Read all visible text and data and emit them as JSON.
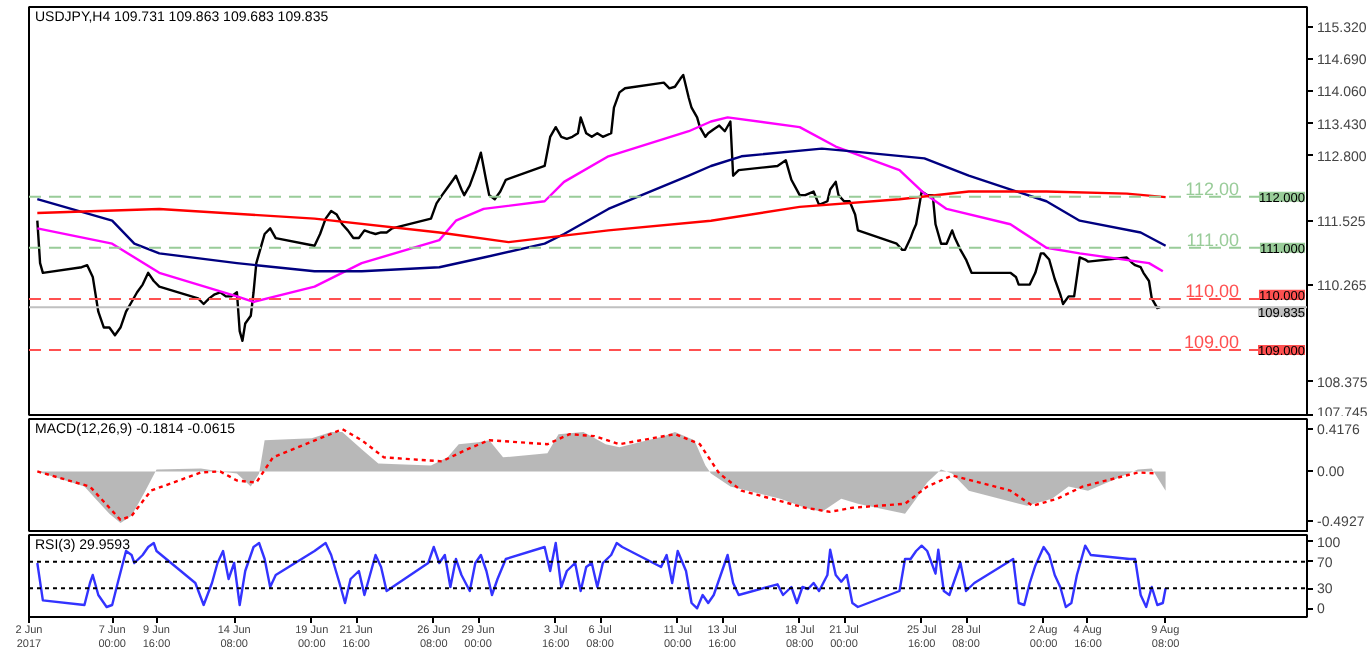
{
  "chart_data": [
    {
      "type": "line",
      "title": "USDJPY,H4  109.731 109.863 109.683 109.835",
      "xlim": [
        "2017-06-02T00:00",
        "2017-08-17T20:00"
      ],
      "ylim": [
        107.69,
        115.71
      ],
      "tick_labels": "y",
      "yticks": [
        {
          "value": 115.32,
          "label": "115.320"
        },
        {
          "value": 114.69,
          "label": "114.690"
        },
        {
          "value": 114.06,
          "label": "114.060"
        },
        {
          "value": 113.43,
          "label": "113.430"
        },
        {
          "value": 112.8,
          "label": "112.800"
        },
        {
          "value": 111.525,
          "label": "111.525"
        },
        {
          "value": 110.265,
          "label": "110.265"
        },
        {
          "value": 108.375,
          "label": "108.375"
        },
        {
          "value": 107.745,
          "label": "107.745"
        }
      ],
      "series": [
        {
          "color": "#000000",
          "x": [
            "2017-06-02T12:00",
            "2017-06-02T16:00",
            "2017-06-02T20:00",
            "2017-06-05T04:00",
            "2017-06-05T12:00",
            "2017-06-05T20:00",
            "2017-06-06T04:00",
            "2017-06-06T12:00",
            "2017-06-06T20:00",
            "2017-06-07T04:00",
            "2017-06-07T12:00",
            "2017-06-07T20:00",
            "2017-06-08T04:00",
            "2017-06-08T12:00",
            "2017-06-08T20:00",
            "2017-06-09T04:00",
            "2017-06-09T12:00",
            "2017-06-09T20:00",
            "2017-06-12T04:00",
            "2017-06-12T12:00",
            "2017-06-12T20:00",
            "2017-06-13T04:00",
            "2017-06-13T12:00",
            "2017-06-13T20:00",
            "2017-06-14T04:00",
            "2017-06-14T12:00",
            "2017-06-14T16:00",
            "2017-06-14T20:00",
            "2017-06-15T00:00",
            "2017-06-15T08:00",
            "2017-06-15T12:00",
            "2017-06-15T16:00",
            "2017-06-16T00:00",
            "2017-06-16T04:00",
            "2017-06-16T12:00",
            "2017-06-16T20:00",
            "2017-06-19T04:00",
            "2017-06-19T12:00",
            "2017-06-19T20:00",
            "2017-06-20T04:00",
            "2017-06-20T12:00",
            "2017-06-20T20:00",
            "2017-06-21T04:00",
            "2017-06-21T12:00",
            "2017-06-21T20:00",
            "2017-06-22T04:00",
            "2017-06-22T12:00",
            "2017-06-22T20:00",
            "2017-06-23T04:00",
            "2017-06-23T12:00",
            "2017-06-23T20:00",
            "2017-06-26T04:00",
            "2017-06-26T12:00",
            "2017-06-26T20:00",
            "2017-06-27T04:00",
            "2017-06-27T12:00",
            "2017-06-27T16:00",
            "2017-06-28T00:00",
            "2017-06-28T04:00",
            "2017-06-28T12:00",
            "2017-06-28T20:00",
            "2017-06-29T04:00",
            "2017-06-29T12:00",
            "2017-06-29T16:00",
            "2017-06-30T00:00",
            "2017-06-30T08:00",
            "2017-06-30T16:00",
            "2017-07-03T00:00",
            "2017-07-03T08:00",
            "2017-07-03T16:00",
            "2017-07-04T00:00",
            "2017-07-04T08:00",
            "2017-07-04T16:00",
            "2017-07-05T00:00",
            "2017-07-05T04:00",
            "2017-07-05T12:00",
            "2017-07-05T20:00",
            "2017-07-06T04:00",
            "2017-07-06T12:00",
            "2017-07-07T00:00",
            "2017-07-07T04:00",
            "2017-07-07T12:00",
            "2017-07-07T20:00",
            "2017-07-10T04:00",
            "2017-07-10T12:00",
            "2017-07-10T20:00",
            "2017-07-11T04:00",
            "2017-07-11T08:00",
            "2017-07-11T16:00",
            "2017-07-11T20:00",
            "2017-07-12T04:00",
            "2017-07-12T08:00",
            "2017-07-12T16:00",
            "2017-07-12T20:00",
            "2017-07-13T04:00",
            "2017-07-13T12:00",
            "2017-07-13T20:00",
            "2017-07-14T04:00",
            "2017-07-14T08:00",
            "2017-07-14T16:00",
            "2017-07-17T00:00",
            "2017-07-17T12:00",
            "2017-07-17T20:00",
            "2017-07-18T08:00",
            "2017-07-18T16:00",
            "2017-07-19T04:00",
            "2017-07-19T12:00",
            "2017-07-20T00:00",
            "2017-07-20T04:00",
            "2017-07-20T12:00",
            "2017-07-20T16:00",
            "2017-07-21T00:00",
            "2017-07-21T08:00",
            "2017-07-21T16:00",
            "2017-07-21T20:00",
            "2017-07-24T04:00",
            "2017-07-24T12:00",
            "2017-07-24T16:00",
            "2017-07-25T00:00",
            "2017-07-25T04:00",
            "2017-07-25T08:00",
            "2017-07-25T16:00",
            "2017-07-26T00:00",
            "2017-07-26T08:00",
            "2017-07-26T12:00",
            "2017-07-26T20:00",
            "2017-07-27T04:00",
            "2017-07-27T12:00",
            "2017-07-27T16:00",
            "2017-07-28T00:00",
            "2017-07-28T08:00",
            "2017-07-28T16:00",
            "2017-07-31T00:00",
            "2017-07-31T08:00",
            "2017-07-31T12:00",
            "2017-07-31T20:00",
            "2017-08-01T04:00",
            "2017-08-01T12:00",
            "2017-08-01T20:00",
            "2017-08-02T00:00",
            "2017-08-02T08:00",
            "2017-08-02T16:00",
            "2017-08-03T00:00",
            "2017-08-03T04:00",
            "2017-08-03T12:00",
            "2017-08-03T20:00",
            "2017-08-04T04:00",
            "2017-08-04T12:00",
            "2017-08-04T16:00",
            "2017-08-07T00:00",
            "2017-08-07T08:00",
            "2017-08-07T12:00",
            "2017-08-07T20:00",
            "2017-08-08T00:00",
            "2017-08-08T08:00",
            "2017-08-08T12:00",
            "2017-08-08T20:00",
            "2017-08-09T00:00"
          ],
          "values": [
            111.53,
            110.7,
            110.51,
            110.62,
            110.66,
            110.43,
            109.75,
            109.44,
            109.44,
            109.29,
            109.44,
            109.75,
            109.94,
            110.13,
            110.28,
            110.51,
            110.35,
            110.24,
            110.01,
            109.9,
            110.01,
            110.09,
            110.13,
            110.05,
            110.05,
            110.13,
            109.37,
            109.18,
            109.52,
            109.67,
            110.13,
            110.7,
            111.08,
            111.27,
            111.38,
            111.19,
            111.04,
            111.27,
            111.57,
            111.72,
            111.65,
            111.46,
            111.34,
            111.19,
            111.19,
            111.34,
            111.3,
            111.27,
            111.3,
            111.3,
            111.38,
            111.57,
            111.87,
            112.03,
            112.18,
            112.33,
            112.41,
            112.14,
            112.03,
            112.22,
            112.52,
            112.86,
            112.29,
            112.03,
            111.95,
            112.1,
            112.33,
            112.6,
            113.17,
            113.36,
            113.17,
            113.13,
            113.17,
            113.24,
            113.55,
            113.24,
            113.17,
            113.24,
            113.17,
            113.24,
            113.74,
            114.04,
            114.12,
            114.23,
            114.12,
            114.15,
            114.31,
            114.38,
            113.93,
            113.74,
            113.55,
            113.36,
            113.17,
            113.24,
            113.32,
            113.39,
            113.28,
            113.47,
            112.41,
            112.52,
            112.6,
            112.71,
            112.33,
            112.03,
            112.03,
            112.1,
            111.84,
            111.91,
            112.14,
            112.29,
            112.03,
            111.91,
            111.91,
            111.65,
            111.34,
            111.08,
            110.96,
            110.96,
            111.19,
            111.34,
            111.46,
            112.1,
            112.03,
            112.03,
            111.46,
            111.08,
            111.08,
            111.34,
            111.19,
            110.96,
            110.77,
            110.51,
            110.51,
            110.43,
            110.28,
            110.28,
            110.28,
            110.51,
            110.89,
            110.89,
            110.77,
            110.39,
            110.09,
            109.9,
            110.05,
            110.05,
            110.81,
            110.77,
            110.73,
            110.81,
            110.7,
            110.66,
            110.62,
            110.51,
            110.35,
            110.01,
            109.82,
            109.84
          ]
        },
        {
          "color": "#ff00ff",
          "x": [
            "2017-06-02T12:00",
            "2017-06-07T00:00",
            "2017-06-09T20:00",
            "2017-06-14T12:00",
            "2017-06-15T12:00",
            "2017-06-19T04:00",
            "2017-06-22T00:00",
            "2017-06-26T16:00",
            "2017-06-27T16:00",
            "2017-06-29T08:00",
            "2017-07-03T00:00",
            "2017-07-04T04:00",
            "2017-07-06T20:00",
            "2017-07-11T16:00",
            "2017-07-13T00:00",
            "2017-07-14T00:00",
            "2017-07-18T08:00",
            "2017-07-20T12:00",
            "2017-07-24T08:00",
            "2017-07-25T20:00",
            "2017-07-27T04:00",
            "2017-07-31T00:00",
            "2017-08-02T04:00",
            "2017-08-04T04:00",
            "2017-08-08T08:00",
            "2017-08-09T04:00"
          ],
          "values": [
            111.38,
            111.08,
            110.51,
            110.05,
            109.94,
            110.24,
            110.7,
            111.15,
            111.53,
            111.76,
            111.91,
            112.29,
            112.79,
            113.28,
            113.47,
            113.55,
            113.36,
            112.98,
            112.52,
            112.06,
            111.76,
            111.46,
            111,
            110.89,
            110.7,
            110.54
          ]
        },
        {
          "color": "#000080",
          "x": [
            "2017-06-02T12:00",
            "2017-06-07T00:00",
            "2017-06-08T08:00",
            "2017-06-09T20:00",
            "2017-06-14T12:00",
            "2017-06-19T04:00",
            "2017-06-22T00:00",
            "2017-06-26T16:00",
            "2017-06-29T08:00",
            "2017-07-03T00:00",
            "2017-07-04T04:00",
            "2017-07-06T20:00",
            "2017-07-11T16:00",
            "2017-07-13T00:00",
            "2017-07-14T20:00",
            "2017-07-19T16:00",
            "2017-07-21T00:00",
            "2017-07-25T20:00",
            "2017-07-28T12:00",
            "2017-08-02T04:00",
            "2017-08-04T04:00",
            "2017-08-07T20:00",
            "2017-08-09T08:00"
          ],
          "values": [
            111.95,
            111.53,
            111.08,
            110.89,
            110.7,
            110.54,
            110.54,
            110.62,
            110.81,
            111.08,
            111.27,
            111.76,
            112.41,
            112.6,
            112.79,
            112.94,
            112.9,
            112.75,
            112.41,
            111.91,
            111.53,
            111.3,
            111.04
          ]
        },
        {
          "color": "#ff0000",
          "x": [
            "2017-06-02T12:00",
            "2017-06-09T20:00",
            "2017-06-19T04:00",
            "2017-06-26T16:00",
            "2017-06-30T20:00",
            "2017-07-06T20:00",
            "2017-07-13T00:00",
            "2017-07-18T08:00",
            "2017-07-24T08:00",
            "2017-07-28T12:00",
            "2017-08-02T04:00",
            "2017-08-07T00:00",
            "2017-08-09T08:00"
          ],
          "values": [
            111.68,
            111.76,
            111.57,
            111.3,
            111.11,
            111.34,
            111.53,
            111.8,
            111.95,
            112.1,
            112.1,
            112.06,
            111.99
          ]
        }
      ],
      "ref_lines": [
        {
          "axis": "y",
          "value": 112,
          "label": "112.00",
          "color": "#99cc99",
          "line_style": "dashed"
        },
        {
          "axis": "y",
          "value": 111,
          "label": "111.00",
          "color": "#99cc99",
          "line_style": "dashed"
        },
        {
          "axis": "y",
          "value": 110,
          "label": "110.00",
          "color": "#ff5050",
          "line_style": "dashed"
        },
        {
          "axis": "y",
          "value": 109,
          "label": "109.00",
          "color": "#ff5050",
          "line_style": "dashed"
        },
        {
          "axis": "y",
          "value": 109.835,
          "label": null,
          "color": "#c0c0c0",
          "line_style": "solid"
        }
      ],
      "annotations": [
        {
          "text": "112.000",
          "y": 112
        },
        {
          "text": "111.000",
          "y": 111
        },
        {
          "text": "110.000",
          "y": 110
        },
        {
          "text": "109.835",
          "y": 109.835
        },
        {
          "text": "109.000",
          "y": 109
        }
      ]
    },
    {
      "type": "area",
      "title": "MACD(12,26,9) -0.1814 -0.0615",
      "xlim": [
        "2017-06-02T00:00",
        "2017-08-17T20:00"
      ],
      "ylim": [
        -0.61,
        0.52
      ],
      "tick_labels": "y",
      "yticks": [
        0.4176,
        {
          "value": 0,
          "label": "0.00"
        },
        -0.4927
      ],
      "series": [
        {
          "color": "#a0a0a0",
          "type": "area",
          "x": [
            "2017-06-02T12:00",
            "2017-06-05T08:00",
            "2017-06-06T00:00",
            "2017-06-06T20:00",
            "2017-06-07T12:00",
            "2017-06-08T04:00",
            "2017-06-09T00:00",
            "2017-06-09T16:00",
            "2017-06-12T08:00",
            "2017-06-13T12:00",
            "2017-06-14T12:00",
            "2017-06-15T08:00",
            "2017-06-15T20:00",
            "2017-06-16T04:00",
            "2017-06-19T00:00",
            "2017-06-20T04:00",
            "2017-06-20T20:00",
            "2017-06-22T00:00",
            "2017-06-23T00:00",
            "2017-06-26T04:00",
            "2017-06-27T04:00",
            "2017-06-27T20:00",
            "2017-06-29T00:00",
            "2017-06-29T16:00",
            "2017-06-30T12:00",
            "2017-07-03T04:00",
            "2017-07-03T20:00",
            "2017-07-05T08:00",
            "2017-07-06T16:00",
            "2017-07-07T12:00",
            "2017-07-10T04:00",
            "2017-07-10T20:00",
            "2017-07-12T00:00",
            "2017-07-12T16:00",
            "2017-07-13T00:00",
            "2017-07-14T04:00",
            "2017-07-17T04:00",
            "2017-07-18T16:00",
            "2017-07-19T16:00",
            "2017-07-20T20:00",
            "2017-07-21T20:00",
            "2017-07-24T16:00",
            "2017-07-25T08:00",
            "2017-07-26T00:00",
            "2017-07-26T20:00",
            "2017-07-27T12:00",
            "2017-07-28T12:00",
            "2017-08-01T00:00",
            "2017-08-02T12:00",
            "2017-08-03T12:00",
            "2017-08-04T16:00",
            "2017-08-07T16:00",
            "2017-08-08T12:00",
            "2017-08-09T08:00"
          ],
          "values": [
            0,
            -0.15,
            -0.27,
            -0.42,
            -0.51,
            -0.44,
            -0.19,
            0.02,
            0.03,
            0,
            -0.02,
            -0.15,
            -0.02,
            0.31,
            0.33,
            0.39,
            0.39,
            0.22,
            0.08,
            0.06,
            0.14,
            0.27,
            0.29,
            0.31,
            0.14,
            0.18,
            0.37,
            0.39,
            0.27,
            0.24,
            0.35,
            0.39,
            0.31,
            0.06,
            -0.02,
            -0.15,
            -0.27,
            -0.36,
            -0.4,
            -0.27,
            -0.32,
            -0.42,
            -0.27,
            -0.11,
            0.02,
            -0.02,
            -0.19,
            -0.34,
            -0.27,
            -0.15,
            -0.19,
            0.02,
            0.03,
            -0.19
          ]
        },
        {
          "color": "#ff0000",
          "type": "line",
          "line_style": "dotted",
          "x": [
            "2017-06-02T12:00",
            "2017-06-05T16:00",
            "2017-06-06T20:00",
            "2017-06-07T12:00",
            "2017-06-08T04:00",
            "2017-06-09T08:00",
            "2017-06-12T08:00",
            "2017-06-13T12:00",
            "2017-06-14T12:00",
            "2017-06-15T16:00",
            "2017-06-16T16:00",
            "2017-06-19T20:00",
            "2017-06-20T20:00",
            "2017-06-22T00:00",
            "2017-06-23T08:00",
            "2017-06-26T20:00",
            "2017-06-28T08:00",
            "2017-06-29T16:00",
            "2017-07-03T04:00",
            "2017-07-04T12:00",
            "2017-07-06T00:00",
            "2017-07-07T12:00",
            "2017-07-10T20:00",
            "2017-07-12T08:00",
            "2017-07-13T12:00",
            "2017-07-14T20:00",
            "2017-07-18T16:00",
            "2017-07-20T04:00",
            "2017-07-21T12:00",
            "2017-07-24T16:00",
            "2017-07-26T00:00",
            "2017-07-27T12:00",
            "2017-07-31T00:00",
            "2017-08-01T08:00",
            "2017-08-02T20:00",
            "2017-08-04T08:00",
            "2017-08-07T16:00",
            "2017-08-08T20:00"
          ],
          "values": [
            0,
            -0.15,
            -0.36,
            -0.48,
            -0.44,
            -0.19,
            -0.01,
            0,
            -0.09,
            -0.11,
            0.14,
            0.35,
            0.42,
            0.31,
            0.14,
            0.1,
            0.22,
            0.31,
            0.27,
            0.37,
            0.35,
            0.27,
            0.37,
            0.27,
            -0.02,
            -0.19,
            -0.36,
            -0.4,
            -0.36,
            -0.32,
            -0.15,
            -0.04,
            -0.19,
            -0.34,
            -0.27,
            -0.15,
            -0.01,
            -0.02
          ]
        }
      ]
    },
    {
      "type": "line",
      "title": "RSI(3) 29.9593",
      "xlim": [
        "2017-06-02T00:00",
        "2017-08-17T20:00"
      ],
      "ylim": [
        -13,
        110
      ],
      "yticks": [
        100,
        70,
        30,
        0
      ],
      "xticks": [
        {
          "value": "2017-06-02",
          "label": "2 Jun 2017"
        },
        {
          "value": "2017-06-07T00:00",
          "label": "7 Jun 00:00"
        },
        {
          "value": "2017-06-09T16:00",
          "label": "9 Jun 16:00"
        },
        {
          "value": "2017-06-14T08:00",
          "label": "14 Jun 08:00"
        },
        {
          "value": "2017-06-19T00:00",
          "label": "19 Jun 00:00"
        },
        {
          "value": "2017-06-21T16:00",
          "label": "21 Jun 16:00"
        },
        {
          "value": "2017-06-26T08:00",
          "label": "26 Jun 08:00"
        },
        {
          "value": "2017-06-29T00:00",
          "label": "29 Jun 00:00"
        },
        {
          "value": "2017-07-03T16:00",
          "label": "3 Jul 16:00"
        },
        {
          "value": "2017-07-06T08:00",
          "label": "6 Jul 08:00"
        },
        {
          "value": "2017-07-11T00:00",
          "label": "11 Jul 00:00"
        },
        {
          "value": "2017-07-13T16:00",
          "label": "13 Jul 16:00"
        },
        {
          "value": "2017-07-18T08:00",
          "label": "18 Jul 08:00"
        },
        {
          "value": "2017-07-21T00:00",
          "label": "21 Jul 00:00"
        },
        {
          "value": "2017-07-25T16:00",
          "label": "25 Jul 16:00"
        },
        {
          "value": "2017-07-28T08:00",
          "label": "28 Jul 08:00"
        },
        {
          "value": "2017-08-02T00:00",
          "label": "2 Aug 00:00"
        },
        {
          "value": "2017-08-04T16:00",
          "label": "4 Aug 16:00"
        },
        {
          "value": "2017-08-09T08:00",
          "label": "9 Aug 08:00"
        }
      ],
      "series": [
        {
          "color": "#3333ff",
          "x": [
            "2017-06-02T12:00",
            "2017-06-02T20:00",
            "2017-06-05T08:00",
            "2017-06-05T16:00",
            "2017-06-05T20:00",
            "2017-06-06T04:00",
            "2017-06-06T16:00",
            "2017-06-07T00:00",
            "2017-06-07T08:00",
            "2017-06-07T20:00",
            "2017-06-08T04:00",
            "2017-06-08T08:00",
            "2017-06-08T20:00",
            "2017-06-09T04:00",
            "2017-06-09T12:00",
            "2017-06-09T16:00",
            "2017-06-12T00:00",
            "2017-06-12T12:00",
            "2017-06-13T00:00",
            "2017-06-13T08:00",
            "2017-06-13T16:00",
            "2017-06-14T00:00",
            "2017-06-14T08:00",
            "2017-06-14T16:00",
            "2017-06-15T00:00",
            "2017-06-15T12:00",
            "2017-06-15T20:00",
            "2017-06-16T04:00",
            "2017-06-16T12:00",
            "2017-06-16T20:00",
            "2017-06-19T04:00",
            "2017-06-19T20:00",
            "2017-06-20T04:00",
            "2017-06-20T16:00",
            "2017-06-21T00:00",
            "2017-06-21T08:00",
            "2017-06-21T20:00",
            "2017-06-22T04:00",
            "2017-06-22T12:00",
            "2017-06-22T20:00",
            "2017-06-23T04:00",
            "2017-06-23T12:00",
            "2017-06-26T00:00",
            "2017-06-26T08:00",
            "2017-06-26T16:00",
            "2017-06-27T00:00",
            "2017-06-27T08:00",
            "2017-06-27T16:00",
            "2017-06-28T00:00",
            "2017-06-28T12:00",
            "2017-06-28T20:00",
            "2017-06-29T04:00",
            "2017-06-29T12:00",
            "2017-06-29T20:00",
            "2017-06-30T04:00",
            "2017-06-30T16:00",
            "2017-07-03T00:00",
            "2017-07-03T08:00",
            "2017-07-03T16:00",
            "2017-07-04T00:00",
            "2017-07-04T08:00",
            "2017-07-04T20:00",
            "2017-07-05T04:00",
            "2017-07-05T12:00",
            "2017-07-05T20:00",
            "2017-07-06T04:00",
            "2017-07-06T12:00",
            "2017-07-07T00:00",
            "2017-07-07T08:00",
            "2017-07-07T16:00",
            "2017-07-10T00:00",
            "2017-07-10T08:00",
            "2017-07-10T16:00",
            "2017-07-11T00:00",
            "2017-07-11T12:00",
            "2017-07-11T20:00",
            "2017-07-12T04:00",
            "2017-07-12T12:00",
            "2017-07-12T20:00",
            "2017-07-13T04:00",
            "2017-07-13T16:00",
            "2017-07-14T00:00",
            "2017-07-14T08:00",
            "2017-07-14T16:00",
            "2017-07-17T00:00",
            "2017-07-17T08:00",
            "2017-07-17T20:00",
            "2017-07-18T04:00",
            "2017-07-18T12:00",
            "2017-07-18T20:00",
            "2017-07-19T04:00",
            "2017-07-19T12:00",
            "2017-07-20T00:00",
            "2017-07-20T04:00",
            "2017-07-20T12:00",
            "2017-07-20T20:00",
            "2017-07-21T04:00",
            "2017-07-21T12:00",
            "2017-07-21T20:00",
            "2017-07-24T08:00",
            "2017-07-24T16:00",
            "2017-07-25T00:00",
            "2017-07-25T08:00",
            "2017-07-25T16:00",
            "2017-07-26T00:00",
            "2017-07-26T12:00",
            "2017-07-26T16:00",
            "2017-07-27T00:00",
            "2017-07-27T08:00",
            "2017-07-27T16:00",
            "2017-07-28T00:00",
            "2017-07-28T08:00",
            "2017-07-28T20:00",
            "2017-07-31T04:00",
            "2017-07-31T12:00",
            "2017-07-31T20:00",
            "2017-08-01T04:00",
            "2017-08-01T12:00",
            "2017-08-02T00:00",
            "2017-08-02T08:00",
            "2017-08-02T16:00",
            "2017-08-03T00:00",
            "2017-08-03T08:00",
            "2017-08-03T16:00",
            "2017-08-04T00:00",
            "2017-08-04T12:00",
            "2017-08-04T20:00",
            "2017-08-07T04:00",
            "2017-08-07T12:00",
            "2017-08-07T20:00",
            "2017-08-08T04:00",
            "2017-08-08T12:00",
            "2017-08-08T20:00",
            "2017-08-09T04:00",
            "2017-08-09T08:00"
          ],
          "values": [
            68,
            12,
            5,
            38,
            50,
            20,
            2,
            5,
            38,
            86,
            80,
            68,
            80,
            92,
            98,
            86,
            38,
            5,
            38,
            68,
            86,
            44,
            68,
            5,
            56,
            92,
            98,
            74,
            32,
            50,
            86,
            98,
            80,
            38,
            8,
            44,
            56,
            20,
            50,
            80,
            62,
            26,
            68,
            92,
            68,
            80,
            32,
            74,
            50,
            26,
            68,
            80,
            56,
            20,
            44,
            74,
            92,
            56,
            98,
            32,
            56,
            68,
            26,
            62,
            68,
            32,
            68,
            80,
            98,
            92,
            62,
            80,
            38,
            86,
            56,
            8,
            0,
            20,
            8,
            20,
            56,
            80,
            38,
            20,
            36,
            20,
            32,
            8,
            32,
            29,
            38,
            26,
            50,
            88,
            50,
            40,
            50,
            8,
            2,
            26,
            74,
            74,
            86,
            94,
            86,
            52,
            88,
            26,
            20,
            44,
            68,
            26,
            38,
            74,
            8,
            5,
            38,
            64,
            92,
            80,
            50,
            32,
            2,
            8,
            50,
            94,
            80,
            74,
            74,
            20,
            2,
            32,
            5,
            8,
            30
          ]
        }
      ],
      "ref_lines": [
        {
          "axis": "y",
          "value": 70,
          "label": null,
          "color": "#000000",
          "line_style": "dotted"
        },
        {
          "axis": "y",
          "value": 30,
          "label": null,
          "color": "#000000",
          "line_style": "dotted"
        }
      ]
    }
  ]
}
